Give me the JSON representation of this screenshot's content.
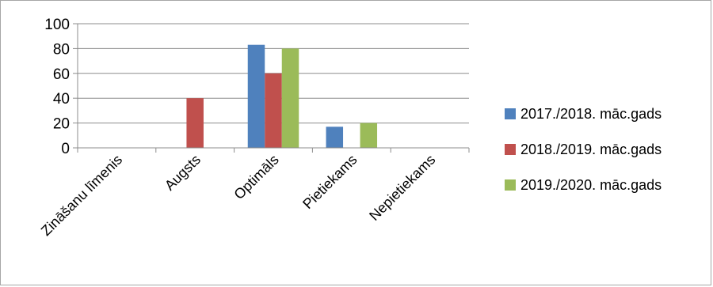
{
  "chart_data": {
    "type": "bar",
    "categories": [
      "Zināšanu līmenis",
      "Augsts",
      "Optimāls",
      "Pietiekams",
      "Nepietiekams"
    ],
    "series": [
      {
        "name": "2017./2018. māc.gads",
        "color": "#4f81bd",
        "values": [
          0,
          0,
          83,
          17,
          0
        ]
      },
      {
        "name": "2018./2019. māc.gads",
        "color": "#c0504d",
        "values": [
          0,
          40,
          60,
          0,
          0
        ]
      },
      {
        "name": "2019./2020. māc.gads",
        "color": "#9bbb59",
        "values": [
          0,
          0,
          80,
          20,
          0
        ]
      }
    ],
    "ylim": [
      0,
      100
    ],
    "yticks": [
      0,
      20,
      40,
      60,
      80,
      100
    ],
    "grid": true,
    "legend_position": "right"
  }
}
